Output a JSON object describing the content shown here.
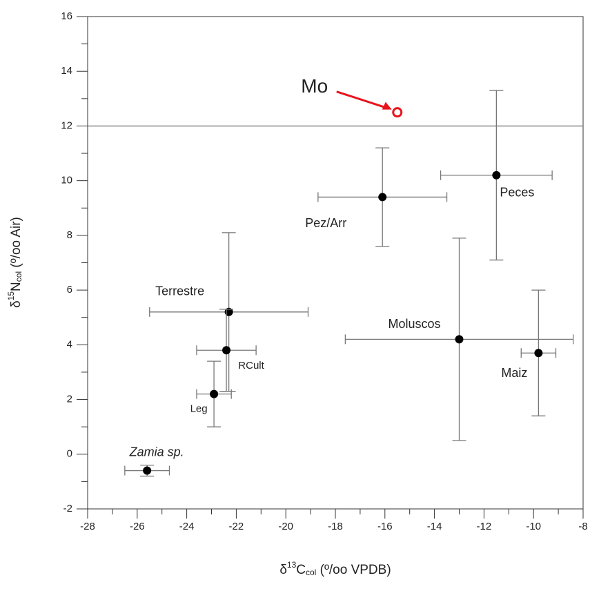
{
  "chart_data": {
    "type": "scatter",
    "xlabel": [
      "δ",
      "13",
      "C",
      "col",
      " (º/oo VPDB)"
    ],
    "ylabel": [
      "δ",
      "15",
      "N",
      "col",
      " (º/oo Air)"
    ],
    "labels": [
      "Peces",
      "Pez/Arr",
      "Terrestre",
      "RCult",
      "Leg",
      "Moluscos",
      "Maiz",
      "Zamia sp."
    ],
    "x": [
      -11.5,
      -16.1,
      -22.3,
      -22.4,
      -22.9,
      -13.0,
      -9.8,
      -25.6
    ],
    "values": [
      10.2,
      9.4,
      5.2,
      3.8,
      2.2,
      4.2,
      3.7,
      -0.6
    ],
    "xerr": [
      2.25,
      2.6,
      3.2,
      1.2,
      0.7,
      4.6,
      0.7,
      0.9
    ],
    "yerr": [
      3.1,
      1.8,
      2.9,
      1.5,
      1.2,
      3.7,
      2.3,
      0.2
    ],
    "color": "#000000",
    "highlight": {
      "label": "Mo",
      "x": -15.5,
      "y": 12.5,
      "color": "#e8141c"
    },
    "hline": 12,
    "xlim": [
      -28,
      -8
    ],
    "xticks": [
      -28,
      -26,
      -24,
      -22,
      -20,
      -18,
      -16,
      -14,
      -12,
      -10,
      -8
    ],
    "xminorticks": [
      -27,
      -25,
      -23,
      -21,
      -19,
      -17,
      -15,
      -13,
      -11,
      -9
    ],
    "ylim": [
      -2,
      16
    ],
    "yticks": [
      -2,
      0,
      2,
      4,
      6,
      8,
      10,
      12,
      14,
      16
    ],
    "yminorticks": [
      -1,
      1,
      3,
      5,
      7,
      9,
      11,
      13,
      15
    ]
  }
}
